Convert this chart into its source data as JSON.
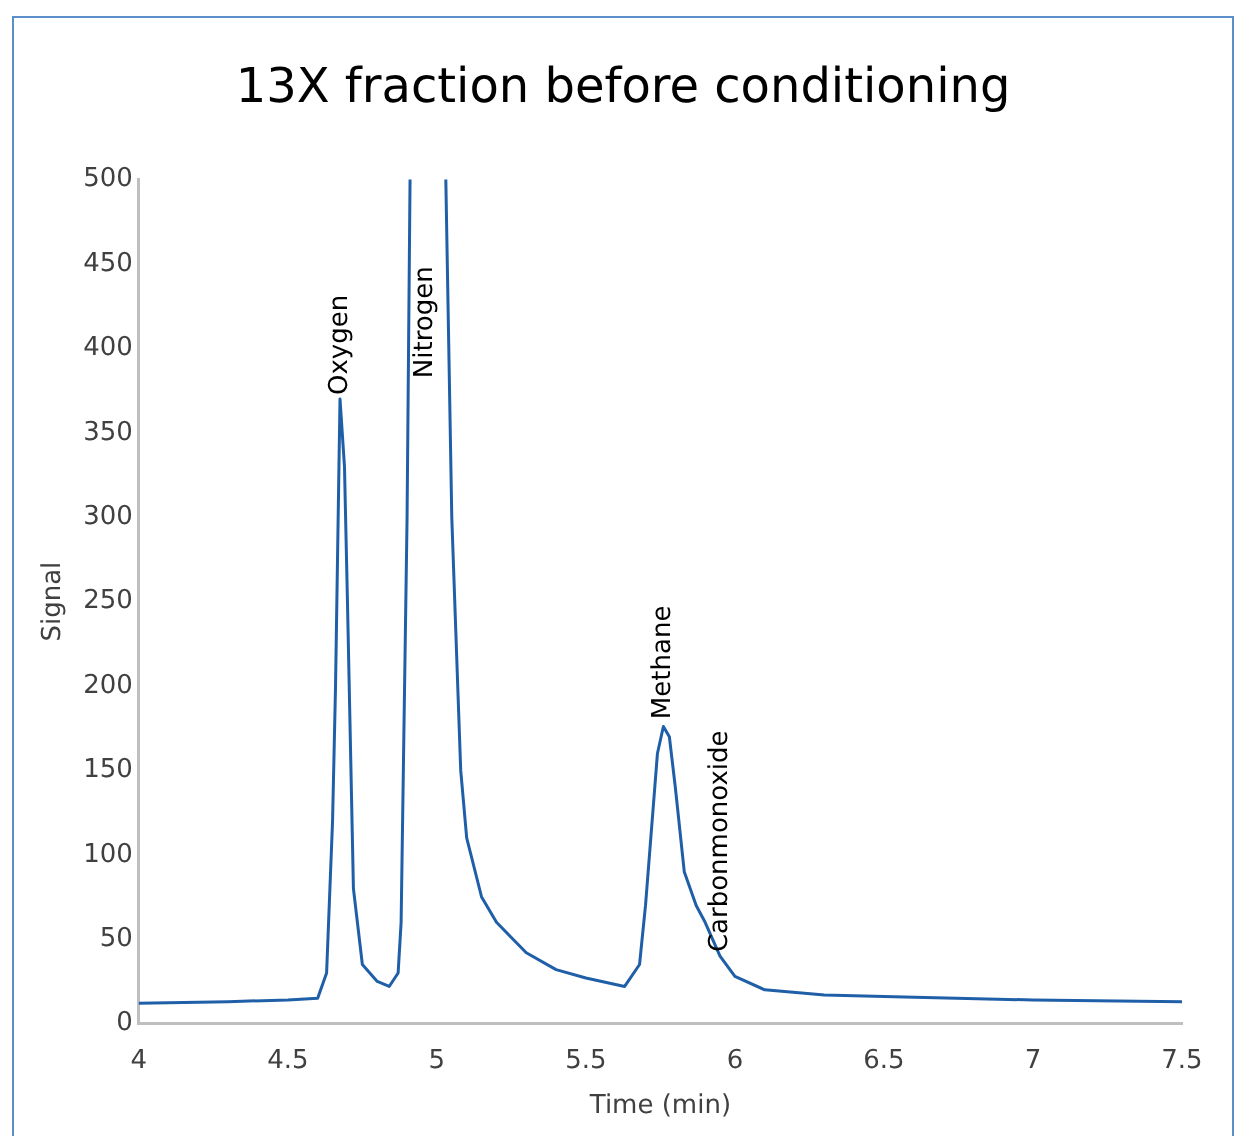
{
  "chart_data": {
    "type": "line",
    "title": "13X fraction before conditioning",
    "xlabel": "Time (min)",
    "ylabel": "Signal",
    "xlim": [
      4,
      7.5
    ],
    "xticks": [
      4,
      4.5,
      5,
      5.5,
      6,
      6.5,
      7,
      7.5
    ],
    "ylim": [
      0,
      500
    ],
    "yticks": [
      0,
      50,
      100,
      150,
      200,
      250,
      300,
      350,
      400,
      450,
      500
    ],
    "grid": false,
    "legend": false,
    "marker": "none",
    "line_style": "solid",
    "series": [
      {
        "color": "#1f5fa8",
        "x": [
          4,
          4.3,
          4.5,
          4.6,
          4.63,
          4.65,
          4.66,
          4.675,
          4.69,
          4.7,
          4.72,
          4.75,
          4.8,
          4.84,
          4.87,
          4.88,
          4.9,
          4.91,
          4.96,
          5.03,
          5.05,
          5.08,
          5.1,
          5.15,
          5.2,
          5.3,
          5.4,
          5.5,
          5.63,
          5.68,
          5.7,
          5.74,
          5.76,
          5.78,
          5.8,
          5.83,
          5.87,
          5.9,
          5.95,
          6,
          6.1,
          6.3,
          6.5,
          7,
          7.5
        ],
        "values": [
          12,
          13,
          14,
          15,
          30,
          120,
          200,
          370,
          330,
          250,
          80,
          35,
          25,
          22,
          30,
          60,
          300,
          500,
          null,
          500,
          300,
          150,
          110,
          75,
          60,
          42,
          32,
          27,
          22,
          35,
          70,
          160,
          176,
          170,
          140,
          90,
          70,
          60,
          40,
          28,
          20,
          17,
          16,
          14,
          13
        ]
      }
    ],
    "annotations": [
      {
        "text": "Oxygen",
        "x": 4.675,
        "y": 370
      },
      "Nitrogen",
      {
        "text": "Methane",
        "x": 5.76,
        "y": 178
      },
      {
        "text": "Carbonmonoxide",
        "x": 5.95,
        "y": 40
      }
    ]
  }
}
